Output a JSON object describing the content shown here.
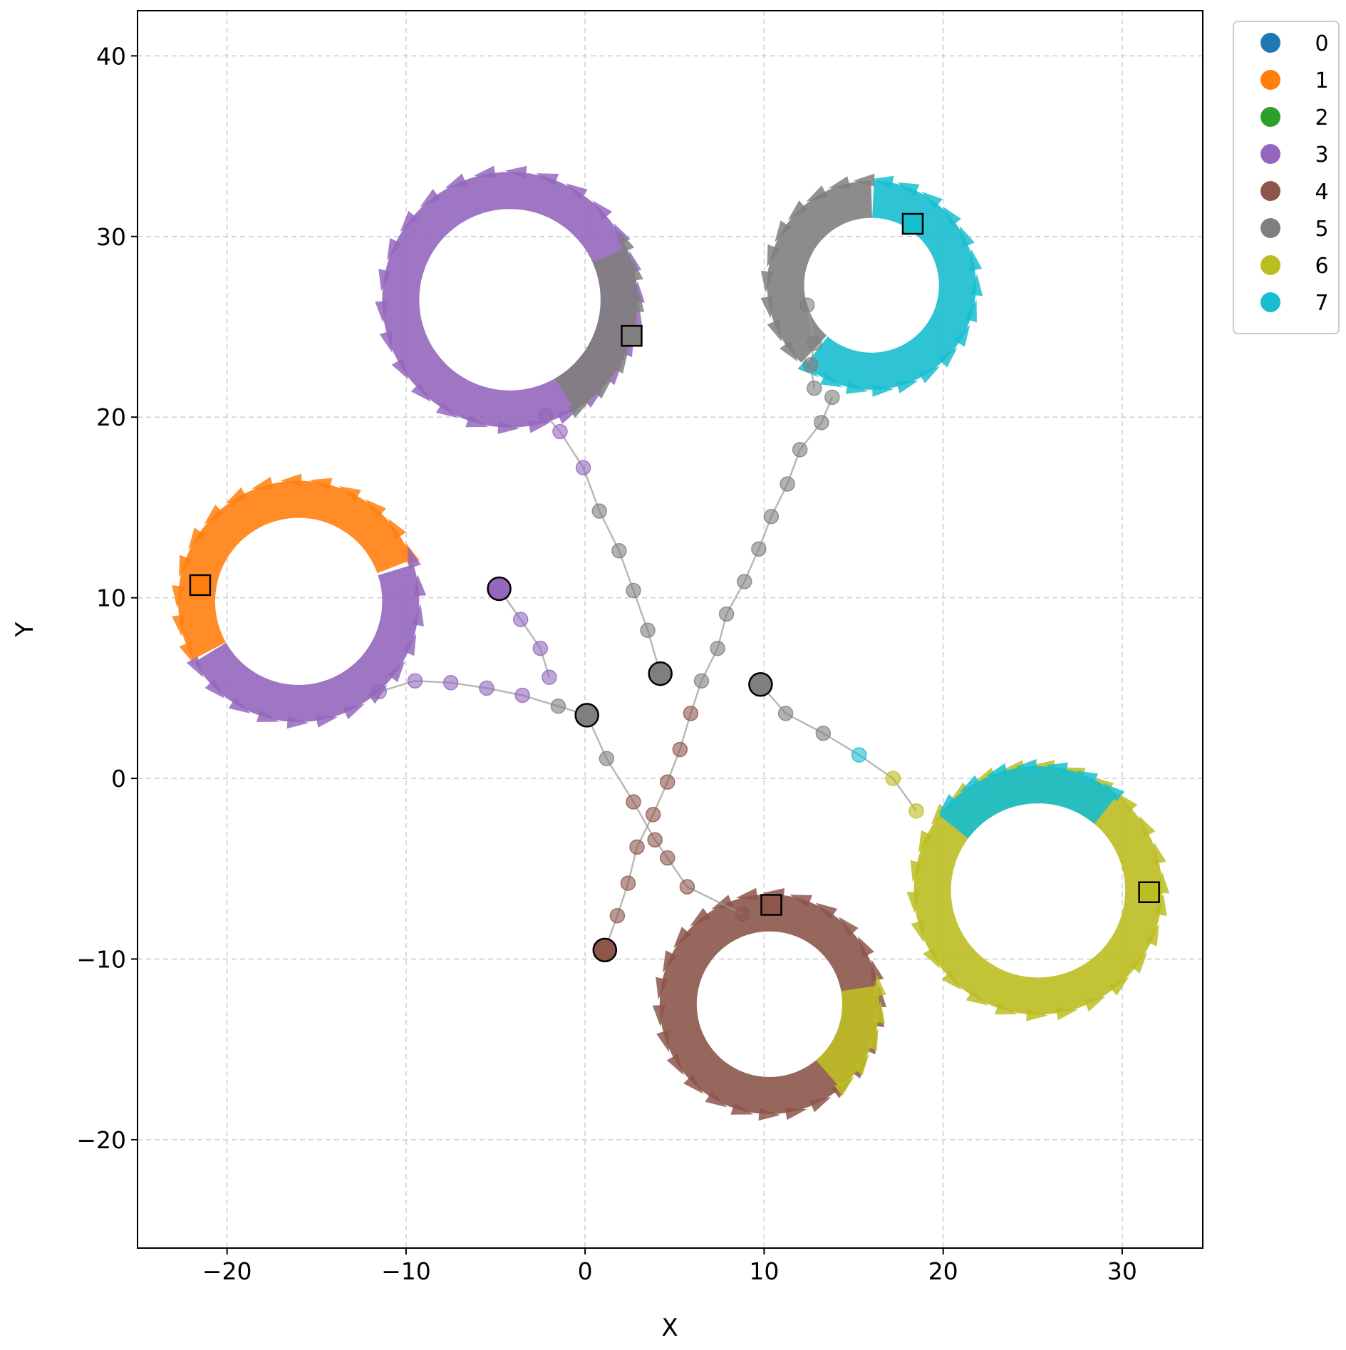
{
  "chart_data": {
    "type": "scatter",
    "xlabel": "X",
    "ylabel": "Y",
    "xlim": [
      -25,
      34.5
    ],
    "ylim": [
      -26,
      42.5
    ],
    "xticks": [
      -20,
      -10,
      0,
      10,
      20,
      30
    ],
    "yticks": [
      -20,
      -10,
      0,
      10,
      20,
      30,
      40
    ],
    "xtick_labels": [
      "−20",
      "−10",
      "0",
      "10",
      "20",
      "30"
    ],
    "ytick_labels": [
      "−20",
      "−10",
      "0",
      "10",
      "20",
      "30",
      "40"
    ],
    "grid": true,
    "legend": {
      "placement": "outside-top-right",
      "entries": [
        {
          "label": "0",
          "color": "#1f77b4"
        },
        {
          "label": "1",
          "color": "#ff7f0e"
        },
        {
          "label": "2",
          "color": "#2ca02c"
        },
        {
          "label": "3",
          "color": "#9467bd"
        },
        {
          "label": "4",
          "color": "#8c564b"
        },
        {
          "label": "5",
          "color": "#7f7f7f"
        },
        {
          "label": "6",
          "color": "#bcbd22"
        },
        {
          "label": "7",
          "color": "#17becf"
        }
      ]
    },
    "rings": [
      {
        "center": [
          -16,
          9.8
        ],
        "radius": 5.7,
        "segments": [
          {
            "from": 20,
            "to": 210,
            "color": "#ff7f0e"
          },
          {
            "from": 210,
            "to": 380,
            "color": "#9467bd"
          }
        ]
      },
      {
        "center": [
          -4.2,
          26.5
        ],
        "radius": 6.1,
        "segments": [
          {
            "from": 0,
            "to": 360,
            "color": "#9467bd"
          },
          {
            "from": -60,
            "to": 25,
            "color": "#7f7f7f"
          }
        ]
      },
      {
        "center": [
          16,
          27.3
        ],
        "radius": 4.8,
        "segments": [
          {
            "from": 90,
            "to": 230,
            "color": "#7f7f7f"
          },
          {
            "from": 230,
            "to": 450,
            "color": "#17becf"
          }
        ]
      },
      {
        "center": [
          25.3,
          -6.2
        ],
        "radius": 5.9,
        "segments": [
          {
            "from": 0,
            "to": 360,
            "color": "#bcbd22"
          },
          {
            "from": 50,
            "to": 145,
            "color": "#17becf"
          }
        ]
      },
      {
        "center": [
          10.3,
          -12.5
        ],
        "radius": 5.1,
        "segments": [
          {
            "from": 0,
            "to": 360,
            "color": "#8c564b"
          },
          {
            "from": -50,
            "to": 10,
            "color": "#bcbd22"
          }
        ]
      }
    ],
    "paths": [
      {
        "points": [
          [
            -4.8,
            10.5
          ],
          [
            -3.6,
            8.8
          ],
          [
            -2.5,
            7.2
          ],
          [
            -2.0,
            5.6
          ]
        ],
        "colors": [
          "#9467bd",
          "#9467bd",
          "#9467bd",
          "#9467bd"
        ]
      },
      {
        "points": [
          [
            0.1,
            3.5
          ],
          [
            -1.5,
            4.0
          ],
          [
            -3.5,
            4.6
          ],
          [
            -5.5,
            5.0
          ],
          [
            -7.5,
            5.3
          ],
          [
            -9.5,
            5.4
          ],
          [
            -11.5,
            4.8
          ]
        ],
        "colors": [
          "#7f7f7f",
          "#7f7f7f",
          "#9467bd",
          "#9467bd",
          "#9467bd",
          "#9467bd",
          "#9467bd"
        ]
      },
      {
        "points": [
          [
            4.2,
            5.8
          ],
          [
            3.5,
            8.2
          ],
          [
            2.7,
            10.4
          ],
          [
            1.9,
            12.6
          ],
          [
            0.8,
            14.8
          ],
          [
            -0.1,
            17.2
          ],
          [
            -1.4,
            19.2
          ],
          [
            -2.2,
            20.1
          ]
        ],
        "colors": [
          "#7f7f7f",
          "#7f7f7f",
          "#7f7f7f",
          "#7f7f7f",
          "#7f7f7f",
          "#9467bd",
          "#9467bd",
          "#9467bd"
        ]
      },
      {
        "points": [
          [
            1.1,
            -9.5
          ],
          [
            1.8,
            -7.6
          ],
          [
            2.4,
            -5.8
          ],
          [
            2.9,
            -3.8
          ],
          [
            3.8,
            -2.0
          ],
          [
            4.6,
            -0.2
          ],
          [
            5.3,
            1.6
          ],
          [
            5.9,
            3.6
          ],
          [
            6.5,
            5.4
          ],
          [
            7.4,
            7.2
          ],
          [
            7.9,
            9.1
          ],
          [
            8.9,
            10.9
          ],
          [
            9.7,
            12.7
          ],
          [
            10.4,
            14.5
          ],
          [
            11.3,
            16.3
          ],
          [
            12.0,
            18.2
          ],
          [
            13.2,
            19.7
          ],
          [
            13.8,
            21.1
          ]
        ],
        "colors": [
          "#8c564b",
          "#8c564b",
          "#8c564b",
          "#8c564b",
          "#8c564b",
          "#8c564b",
          "#8c564b",
          "#8c564b",
          "#7f7f7f",
          "#7f7f7f",
          "#7f7f7f",
          "#7f7f7f",
          "#7f7f7f",
          "#7f7f7f",
          "#7f7f7f",
          "#7f7f7f",
          "#7f7f7f",
          "#7f7f7f"
        ]
      },
      {
        "points": [
          [
            0.1,
            3.5
          ],
          [
            1.2,
            1.1
          ],
          [
            2.7,
            -1.3
          ],
          [
            3.9,
            -3.4
          ],
          [
            4.6,
            -4.4
          ],
          [
            5.7,
            -6.0
          ],
          [
            8.8,
            -7.5
          ]
        ],
        "colors": [
          "#7f7f7f",
          "#7f7f7f",
          "#8c564b",
          "#8c564b",
          "#8c564b",
          "#8c564b",
          "#8c564b"
        ]
      },
      {
        "points": [
          [
            9.8,
            5.2
          ],
          [
            11.2,
            3.6
          ],
          [
            13.3,
            2.5
          ],
          [
            15.3,
            1.3
          ],
          [
            17.2,
            0.0
          ],
          [
            18.5,
            -1.8
          ]
        ],
        "colors": [
          "#7f7f7f",
          "#7f7f7f",
          "#7f7f7f",
          "#17becf",
          "#bcbd22",
          "#bcbd22"
        ]
      },
      {
        "points": [
          [
            12.8,
            21.6
          ],
          [
            12.6,
            22.9
          ],
          [
            12.8,
            24.1
          ],
          [
            12.4,
            26.2
          ]
        ],
        "colors": [
          "#7f7f7f",
          "#7f7f7f",
          "#7f7f7f",
          "#7f7f7f"
        ]
      }
    ],
    "start_markers": [
      {
        "x": -4.8,
        "y": 10.5,
        "color": "#9467bd"
      },
      {
        "x": 4.2,
        "y": 5.8,
        "color": "#7f7f7f"
      },
      {
        "x": 0.1,
        "y": 3.5,
        "color": "#7f7f7f"
      },
      {
        "x": 9.8,
        "y": 5.2,
        "color": "#7f7f7f"
      },
      {
        "x": 1.1,
        "y": -9.5,
        "color": "#8c564b"
      }
    ],
    "end_markers": [
      {
        "x": -21.5,
        "y": 10.7,
        "color": "#ff7f0e"
      },
      {
        "x": 2.6,
        "y": 24.5,
        "color": "#7f7f7f"
      },
      {
        "x": 18.3,
        "y": 30.7,
        "color": "#17becf"
      },
      {
        "x": 10.4,
        "y": -7.0,
        "color": "#8c564b"
      },
      {
        "x": 31.5,
        "y": -6.3,
        "color": "#bcbd22"
      }
    ]
  }
}
